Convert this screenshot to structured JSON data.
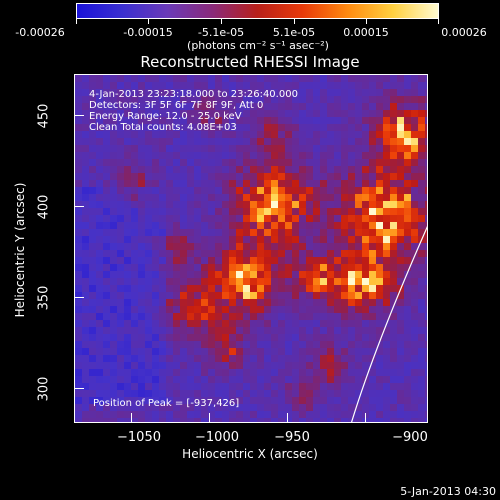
{
  "colorbar": {
    "tick_labels": [
      "-0.00026",
      "-0.00015",
      "-5.1e-05",
      "5.1e-05",
      "0.00015",
      "0.00026"
    ],
    "unit_label": "(photons cm⁻² s⁻¹ asec⁻²)",
    "colors": [
      "#1a12d8",
      "#3a2fd0",
      "#6a3ab8",
      "#8a2a7a",
      "#b8201a",
      "#e83a0a",
      "#ff8a10",
      "#ffd040",
      "#fffad0"
    ]
  },
  "title": "Reconstructed RHESSI Image",
  "info": {
    "time_range": "4-Jan-2013 23:23:18.000 to 23:26:40.000",
    "detectors": "Detectors: 3F 5F 6F 7F 8F 9F, Att 0",
    "energy_range": "Energy Range: 12.0 - 25.0 keV",
    "clean_counts": "Clean      Total counts: 4.08E+03",
    "peak_position": "Position of Peak = [-937,426]"
  },
  "axes": {
    "x_label": "Heliocentric X (arcsec)",
    "y_label": "Heliocentric Y (arcsec)",
    "x_ticks": [
      "−1050",
      "−1000",
      "−950",
      "−900"
    ],
    "y_ticks": [
      "450",
      "400",
      "350",
      "300"
    ]
  },
  "timestamp": "5-Jan-2013 04:30"
}
